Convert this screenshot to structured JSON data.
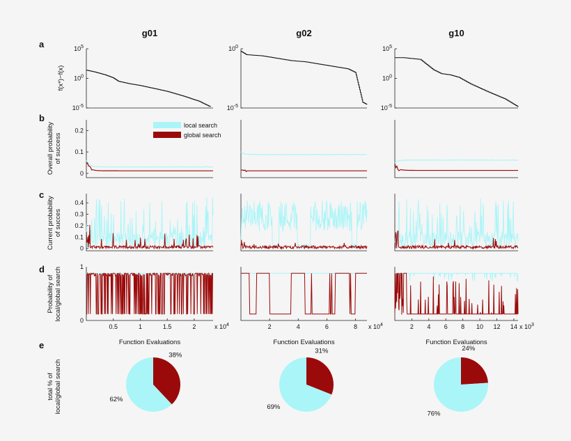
{
  "figure": {
    "column_titles": [
      "g01",
      "g02",
      "g10"
    ],
    "row_letters": [
      "a",
      "b",
      "c",
      "d",
      "e"
    ],
    "row_ylabels": {
      "a": [
        "f(x*)−f(x)"
      ],
      "b": [
        "Overall probability",
        "of success"
      ],
      "c": [
        "Current probability",
        "of succes"
      ],
      "d": [
        "Probability of",
        "local/global search"
      ],
      "e": [
        "total % of",
        "local/global search"
      ]
    },
    "xlabel": "Function Evaluations",
    "legend": {
      "local": "local search",
      "global": "global search"
    },
    "colors": {
      "local": "#aaf5f8",
      "global": "#9b0a0a",
      "curve": "#111111"
    },
    "row_a_ticks": {
      "g01": [
        "10^5",
        "10^0",
        "10^-5"
      ],
      "g02": [
        "10^0",
        "10^-5"
      ],
      "g10": [
        "10^5",
        "10^0",
        "10^-5"
      ]
    },
    "row_b_ticks": [
      "0.2",
      "0.1",
      "0"
    ],
    "row_c_ticks": [
      "0.4",
      "0.3",
      "0.2",
      "0.1",
      "0"
    ],
    "row_d_ticks": [
      "1",
      "0"
    ],
    "x_ticks": {
      "g01": [
        "0.5",
        "1",
        "1.5",
        "2"
      ],
      "g02": [
        "2",
        "4",
        "6",
        "8"
      ],
      "g10": [
        "2",
        "4",
        "6",
        "8",
        "10",
        "12",
        "14"
      ]
    },
    "x_exponent": {
      "g01": "x 10^4",
      "g02": "x 10^4",
      "g10": "x 10^3"
    }
  },
  "chart_data": [
    {
      "type": "line",
      "title": "g01",
      "panels": {
        "a": {
          "ylabel": "f(x*)−f(x)",
          "yscale": "log",
          "ylim": [
            1e-05,
            100000.0
          ],
          "x": [
            0,
            0.15,
            0.35,
            0.5,
            0.6,
            0.8,
            1.0,
            1.2,
            1.5,
            1.8,
            2.1,
            2.3
          ],
          "y_log10": [
            1.4,
            1.1,
            0.6,
            0.1,
            -0.5,
            -0.9,
            -1.2,
            -1.6,
            -2.2,
            -3.0,
            -3.9,
            -4.8
          ]
        },
        "b": {
          "ylim": [
            -0.02,
            0.25
          ],
          "local_final": 0.03,
          "global_final": 0.012,
          "local_start": 0.06,
          "global_start": 0.05
        },
        "c": {
          "ylim": [
            -0.02,
            0.48
          ],
          "local_range": [
            0.0,
            0.45
          ],
          "global_range": [
            0.0,
            0.14
          ]
        },
        "d": {
          "ylim": [
            0,
            1
          ],
          "local_high": 0.88,
          "global_switching": true
        },
        "xlim": [
          0,
          2.35
        ]
      },
      "pie": {
        "labels": [
          "global search",
          "local search"
        ],
        "values": [
          38,
          62
        ],
        "value_labels": [
          "38%",
          "62%"
        ]
      }
    },
    {
      "type": "line",
      "title": "g02",
      "panels": {
        "a": {
          "yscale": "log",
          "ylim": [
            1e-05,
            1
          ],
          "x": [
            0,
            0.4,
            1.5,
            2.5,
            3.5,
            4.5,
            5.5,
            6.5,
            7.5,
            8.0,
            8.5,
            8.8
          ],
          "y_log10": [
            -0.2,
            -0.5,
            -0.6,
            -0.8,
            -1.0,
            -1.1,
            -1.3,
            -1.5,
            -1.7,
            -2.0,
            -4.5,
            -4.7
          ]
        },
        "b": {
          "ylim": [
            -0.02,
            0.25
          ],
          "local_final": 0.088,
          "global_final": 0.012,
          "local_start": 0.1
        },
        "c": {
          "ylim": [
            -0.02,
            0.48
          ],
          "local_range": [
            0.0,
            0.42
          ],
          "global_range": [
            0.0,
            0.05
          ]
        },
        "d": {
          "ylim": [
            0,
            1
          ],
          "blocks_at_1": [
            [
              0.0,
              0.6
            ],
            [
              1.1,
              2.0
            ],
            [
              3.5,
              4.4
            ],
            [
              6.6,
              7.6
            ],
            [
              8.0,
              8.8
            ]
          ]
        },
        "xlim": [
          0,
          8.8
        ]
      },
      "pie": {
        "labels": [
          "global search",
          "local search"
        ],
        "values": [
          31,
          69
        ],
        "value_labels": [
          "31%",
          "69%"
        ]
      }
    },
    {
      "type": "line",
      "title": "g10",
      "panels": {
        "a": {
          "yscale": "log",
          "ylim": [
            1e-05,
            100000.0
          ],
          "x": [
            0,
            1.0,
            3.0,
            4.5,
            5.5,
            6.5,
            7.5,
            9.0,
            11.0,
            13.0,
            14.5
          ],
          "y_log10": [
            3.5,
            3.5,
            3.2,
            1.5,
            0.8,
            0.6,
            0.2,
            -1.0,
            -2.3,
            -3.5,
            -4.8
          ]
        },
        "b": {
          "ylim": [
            -0.02,
            0.25
          ],
          "local_final": 0.062,
          "global_final": 0.014,
          "local_start": 0.05,
          "global_start": 0.04
        },
        "c": {
          "ylim": [
            -0.02,
            0.48
          ],
          "local_range": [
            0.0,
            0.44
          ],
          "global_range": [
            0.0,
            0.1
          ]
        },
        "d": {
          "ylim": [
            0,
            1
          ],
          "local_high": 0.88,
          "global_switching": true
        },
        "xlim": [
          0,
          14.5
        ]
      },
      "pie": {
        "labels": [
          "global search",
          "local search"
        ],
        "values": [
          24,
          76
        ],
        "value_labels": [
          "24%",
          "76%"
        ]
      }
    }
  ]
}
